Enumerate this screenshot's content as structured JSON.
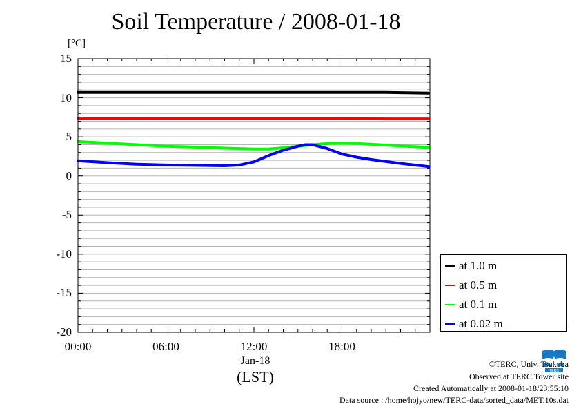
{
  "chart_data": {
    "type": "line",
    "title": "Soil Temperature / 2008-01-18",
    "ylabel": "[°C]",
    "xlabel": "(LST)",
    "x_date_label": "Jan-18",
    "ylim": [
      -20,
      15
    ],
    "xlim_hours": [
      0,
      24
    ],
    "yticks": [
      "15",
      "10",
      "5",
      "0",
      "-5",
      "-10",
      "-15",
      "-20"
    ],
    "xticks": [
      "00:00",
      "06:00",
      "12:00",
      "18:00"
    ],
    "grid": true,
    "legend_position": "bottom-right (outside plot)",
    "series": [
      {
        "name": "at 1.0 m",
        "color": "#000000",
        "points": [
          [
            0,
            10.7
          ],
          [
            3,
            10.7
          ],
          [
            6,
            10.7
          ],
          [
            9,
            10.7
          ],
          [
            12,
            10.7
          ],
          [
            15,
            10.7
          ],
          [
            18,
            10.7
          ],
          [
            21,
            10.7
          ],
          [
            23.9,
            10.6
          ]
        ]
      },
      {
        "name": "at 0.5 m",
        "color": "#ff0000",
        "points": [
          [
            0,
            7.4
          ],
          [
            3,
            7.4
          ],
          [
            6,
            7.35
          ],
          [
            9,
            7.35
          ],
          [
            12,
            7.35
          ],
          [
            15,
            7.35
          ],
          [
            18,
            7.35
          ],
          [
            21,
            7.3
          ],
          [
            23.9,
            7.3
          ]
        ]
      },
      {
        "name": "at 0.1 m",
        "color": "#00ff00",
        "points": [
          [
            0,
            4.4
          ],
          [
            2,
            4.2
          ],
          [
            4,
            4.0
          ],
          [
            6,
            3.8
          ],
          [
            8,
            3.7
          ],
          [
            10,
            3.55
          ],
          [
            12,
            3.45
          ],
          [
            13,
            3.45
          ],
          [
            14,
            3.6
          ],
          [
            15,
            3.8
          ],
          [
            16,
            4.0
          ],
          [
            17,
            4.15
          ],
          [
            18,
            4.2
          ],
          [
            19,
            4.15
          ],
          [
            20,
            4.05
          ],
          [
            22,
            3.85
          ],
          [
            23.9,
            3.65
          ]
        ]
      },
      {
        "name": "at 0.02 m",
        "color": "#0000ff",
        "points": [
          [
            0,
            1.95
          ],
          [
            2,
            1.7
          ],
          [
            4,
            1.5
          ],
          [
            6,
            1.4
          ],
          [
            8,
            1.35
          ],
          [
            10,
            1.3
          ],
          [
            11,
            1.4
          ],
          [
            12,
            1.8
          ],
          [
            13,
            2.6
          ],
          [
            14,
            3.3
          ],
          [
            15,
            3.8
          ],
          [
            15.5,
            4.0
          ],
          [
            16,
            4.0
          ],
          [
            17,
            3.5
          ],
          [
            18,
            2.8
          ],
          [
            19,
            2.4
          ],
          [
            20,
            2.1
          ],
          [
            22,
            1.6
          ],
          [
            23.9,
            1.2
          ]
        ]
      }
    ]
  },
  "footer": {
    "copyright": "©TERC, Univ. Tsukuba",
    "observed": "Observed at TERC Tower site",
    "created": "Created Automatically at 2008-01-18/23:55:10",
    "source": "Data source : /home/hojyo/new/TERC-data/sorted_data/MET.10s.dat"
  },
  "logo": {
    "text": "TERC",
    "color": "#1a78c2"
  }
}
